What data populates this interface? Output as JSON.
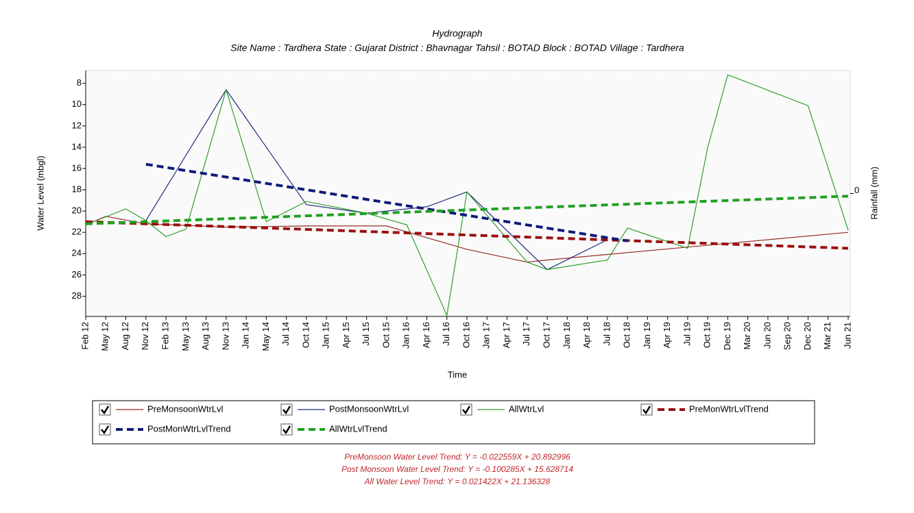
{
  "chart_data": {
    "type": "line",
    "title": "Hydrograph",
    "subtitle": "Site Name : Tardhera  State : Gujarat District : Bhavnagar  Tahsil : BOTAD  Block : BOTAD Village : Tardhera",
    "x_label": "Time",
    "y_label": "Water Level (mbgl)",
    "y2_label": "Rainfall (mm)",
    "categories": [
      "Feb 12",
      "May 12",
      "Aug 12",
      "Nov 12",
      "Feb 13",
      "May 13",
      "Aug 13",
      "Nov 13",
      "Jan 14",
      "May 14",
      "Jul 14",
      "Oct 14",
      "Jan 15",
      "Apr 15",
      "Jul 15",
      "Oct 15",
      "Jan 16",
      "Apr 16",
      "Jul 16",
      "Oct 16",
      "Jan 17",
      "Apr 17",
      "Jul 17",
      "Oct 17",
      "Jan 18",
      "Apr 18",
      "Jul 18",
      "Oct 18",
      "Jan 19",
      "Apr 19",
      "Jul 19",
      "Oct 19",
      "Dec 19",
      "Mar 20",
      "Jun 20",
      "Sep 20",
      "Dec 20",
      "Mar 21",
      "Jun 21"
    ],
    "series": [
      {
        "name": "PreMonsoonWtrLvl",
        "color": "#9b2a2a",
        "dash": false,
        "values": [
          21.3,
          20.5,
          null,
          21.2,
          null,
          null,
          null,
          21.5,
          null,
          null,
          null,
          21.4,
          null,
          null,
          null,
          21.4,
          null,
          null,
          null,
          23.6,
          null,
          null,
          24.8,
          24.6,
          null,
          null,
          null,
          null,
          null,
          null,
          null,
          null,
          null,
          null,
          null,
          null,
          null,
          null,
          22.0
        ]
      },
      {
        "name": "PostMonsoonWtrLvl",
        "color": "#1f2a80",
        "dash": false,
        "values": [
          null,
          null,
          null,
          20.9,
          null,
          null,
          null,
          8.6,
          null,
          null,
          null,
          19.4,
          null,
          null,
          20.2,
          null,
          null,
          19.6,
          null,
          18.2,
          null,
          null,
          null,
          25.5,
          null,
          null,
          22.7,
          null,
          null,
          null,
          null,
          null,
          null,
          null,
          null,
          null,
          null,
          null,
          null
        ]
      },
      {
        "name": "AllWtrLvl",
        "color": "#2e9e2e",
        "dash": false,
        "values": [
          21.3,
          null,
          19.8,
          20.9,
          22.4,
          21.7,
          null,
          8.6,
          null,
          21.0,
          null,
          19.1,
          null,
          null,
          20.2,
          null,
          21.3,
          null,
          29.8,
          18.2,
          null,
          null,
          24.8,
          25.5,
          null,
          null,
          24.6,
          21.6,
          null,
          null,
          23.5,
          14.0,
          7.2,
          null,
          null,
          null,
          10.1,
          null,
          21.8
        ]
      },
      {
        "name": "PreMonWtrLvlTrend",
        "color": "#9b0f0f",
        "dash": true,
        "values": [
          21.0,
          null,
          null,
          null,
          null,
          null,
          null,
          null,
          null,
          null,
          null,
          null,
          null,
          null,
          null,
          null,
          null,
          null,
          null,
          null,
          null,
          null,
          null,
          null,
          null,
          null,
          null,
          null,
          null,
          null,
          null,
          null,
          null,
          null,
          null,
          null,
          null,
          null,
          23.5
        ]
      },
      {
        "name": "PostMonWtrLvlTrend",
        "color": "#0d1a7a",
        "dash": true,
        "values": [
          null,
          null,
          null,
          15.6,
          null,
          null,
          null,
          null,
          null,
          null,
          null,
          null,
          null,
          null,
          null,
          null,
          null,
          null,
          null,
          null,
          null,
          null,
          null,
          null,
          null,
          null,
          null,
          22.8,
          null,
          null,
          null,
          null,
          null,
          null,
          null,
          null,
          null,
          null,
          null
        ]
      },
      {
        "name": "AllWtrLvlTrend",
        "color": "#22a022",
        "dash": true,
        "values": [
          21.2,
          null,
          null,
          null,
          null,
          null,
          null,
          null,
          null,
          null,
          null,
          null,
          null,
          null,
          null,
          null,
          null,
          null,
          null,
          null,
          null,
          null,
          null,
          null,
          null,
          null,
          null,
          null,
          null,
          null,
          null,
          null,
          null,
          null,
          null,
          null,
          null,
          null,
          18.6
        ]
      }
    ],
    "ylim": [
      6.8,
      29.9
    ],
    "y_inverted": true,
    "yticks": [
      8,
      10,
      12,
      14,
      16,
      18,
      20,
      22,
      24,
      26,
      28
    ],
    "y2lim": [
      -1,
      1
    ],
    "y2ticks": [
      0
    ],
    "annotations": [
      "PreMonsoon Water Level Trend: Y = -0.022559X + 20.892996",
      "Post Monsoon Water Level Trend: Y = -0.100285X + 15.628714",
      "All Water Level Trend: Y = 0.021422X + 21.136328"
    ]
  }
}
